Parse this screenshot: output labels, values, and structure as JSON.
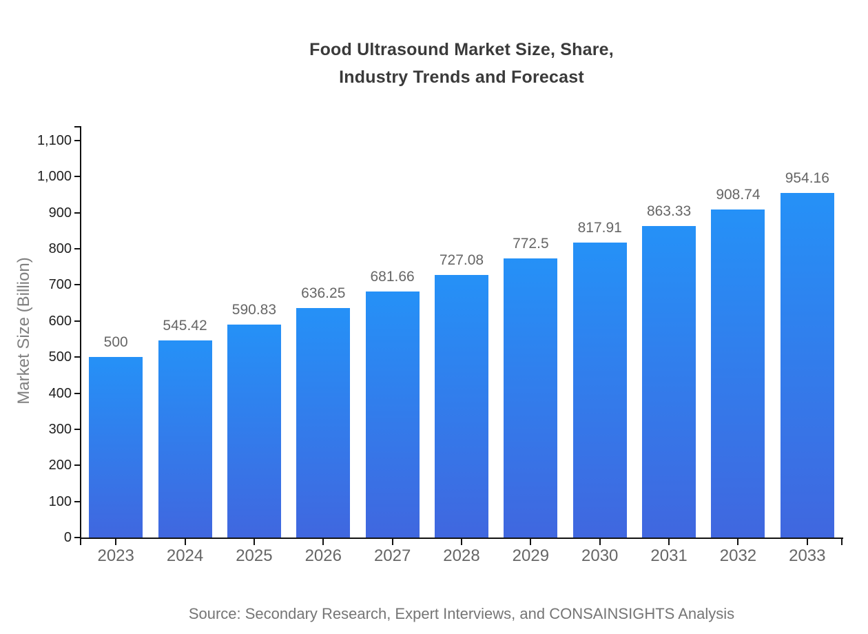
{
  "page": {
    "title": "Food Ultrasound Market Size, Share,\nIndustry Trends and Forecast",
    "source": "Source: Secondary Research, Expert Interviews, and CONSAINSIGHTS Analysis"
  },
  "colors": {
    "bar_gradient_top": "#2591F7",
    "bar_gradient_bottom": "#4067DF",
    "axis": "#111111",
    "title_text": "#3A3A3A",
    "y_tick_text": "#1F1F1F",
    "category_text": "#666666",
    "value_label_text": "#666666",
    "y_axis_title_text": "#808080",
    "source_text": "#757575",
    "background": "#FFFFFF"
  },
  "chart_data": {
    "type": "bar",
    "title": "Food Ultrasound Market Size, Share, Industry Trends and Forecast",
    "categories": [
      "2023",
      "2024",
      "2025",
      "2026",
      "2027",
      "2028",
      "2029",
      "2030",
      "2031",
      "2032",
      "2033"
    ],
    "values": [
      500,
      545.42,
      590.83,
      636.25,
      681.66,
      727.08,
      772.5,
      817.91,
      863.33,
      908.74,
      954.16
    ],
    "value_labels": [
      "500",
      "545.42",
      "590.83",
      "636.25",
      "681.66",
      "727.08",
      "772.5",
      "817.91",
      "863.33",
      "908.74",
      "954.16"
    ],
    "xlabel": "",
    "ylabel": "Market Size (Billion)",
    "ylim": [
      0,
      1146
    ],
    "yticks": [
      0,
      100,
      200,
      300,
      400,
      500,
      600,
      700,
      800,
      900,
      1000,
      1100
    ],
    "ytick_labels": [
      "0",
      "100",
      "200",
      "300",
      "400",
      "500",
      "600",
      "700",
      "800",
      "900",
      "1,000",
      "1,100"
    ],
    "grid": false,
    "legend": false,
    "value_labels_shown": true
  }
}
